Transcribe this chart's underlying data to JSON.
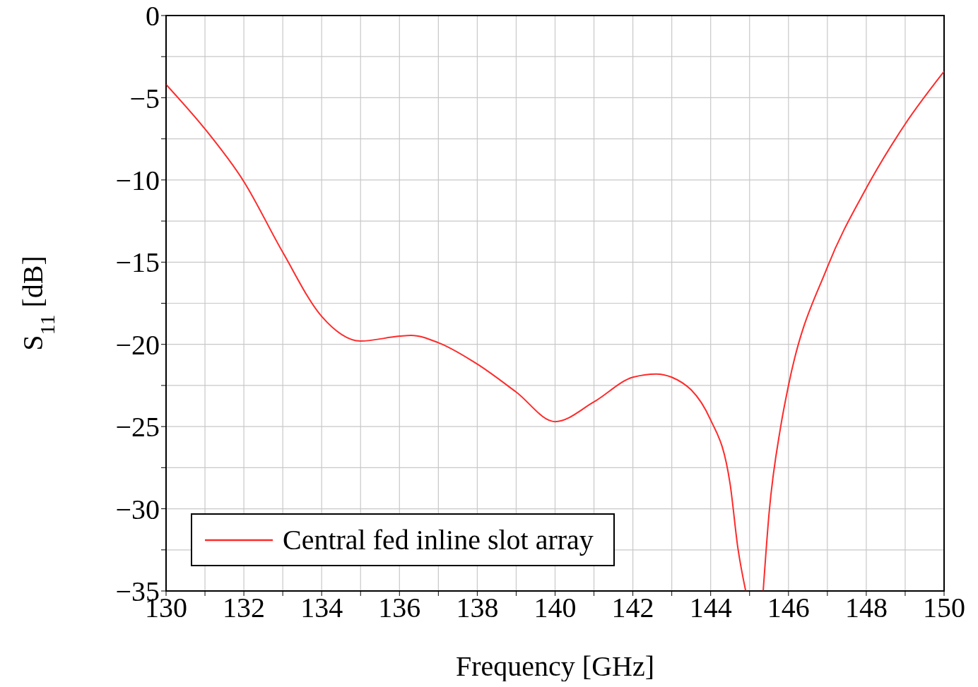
{
  "chart_data": {
    "type": "line",
    "xlabel": "Frequency [GHz]",
    "ylabel": "S$_{11}$ [dB]",
    "xlim": [
      130,
      150
    ],
    "xticks": [
      130,
      {
        "value": 131,
        "label": null
      },
      132,
      {
        "value": 133,
        "label": null
      },
      134,
      {
        "value": 135,
        "label": null
      },
      136,
      {
        "value": 137,
        "label": null
      },
      138,
      {
        "value": 139,
        "label": null
      },
      140,
      {
        "value": 141,
        "label": null
      },
      142,
      {
        "value": 143,
        "label": null
      },
      144,
      {
        "value": 145,
        "label": null
      },
      146,
      {
        "value": 147,
        "label": null
      },
      148,
      {
        "value": 149,
        "label": null
      },
      150
    ],
    "ylim": [
      -35,
      0
    ],
    "yticks": [
      {
        "value": -35,
        "label": "−35"
      },
      {
        "value": -32.5,
        "label": null
      },
      {
        "value": -30,
        "label": "−30"
      },
      {
        "value": -27.5,
        "label": null
      },
      {
        "value": -25,
        "label": "−25"
      },
      {
        "value": -22.5,
        "label": null
      },
      {
        "value": -20,
        "label": "−20"
      },
      {
        "value": -17.5,
        "label": null
      },
      {
        "value": -15,
        "label": "−15"
      },
      {
        "value": -12.5,
        "label": null
      },
      {
        "value": -10,
        "label": "−10"
      },
      {
        "value": -7.5,
        "label": null
      },
      {
        "value": -5,
        "label": "−5"
      },
      {
        "value": -2.5,
        "label": null
      },
      0
    ],
    "grid": true,
    "legend": "bottom left",
    "marker": "none",
    "line_style": "solid",
    "series": [
      {
        "name": "Central fed inline slot array",
        "color": "#ff2a2a",
        "x": [
          130,
          131,
          132,
          133,
          134,
          135,
          136,
          136.3,
          137,
          138,
          139,
          140,
          141,
          142,
          142.6,
          143,
          144,
          144.5,
          144.7,
          144.9,
          145.1,
          145.35,
          145.5,
          145.8,
          146,
          147,
          148,
          149,
          150
        ],
        "values": [
          -4.2,
          -6.9,
          -10.1,
          -14.4,
          -18.3,
          -19.8,
          -19.5,
          -19.45,
          -19.9,
          -21.2,
          -22.9,
          -24.7,
          -23.5,
          -22.0,
          -21.8,
          -22.0,
          -24.6,
          -28.5,
          -32.4,
          -35,
          null,
          -35,
          -30.3,
          -25,
          -22.5,
          -15.3,
          -10.5,
          -6.6,
          -3.4
        ]
      }
    ]
  }
}
